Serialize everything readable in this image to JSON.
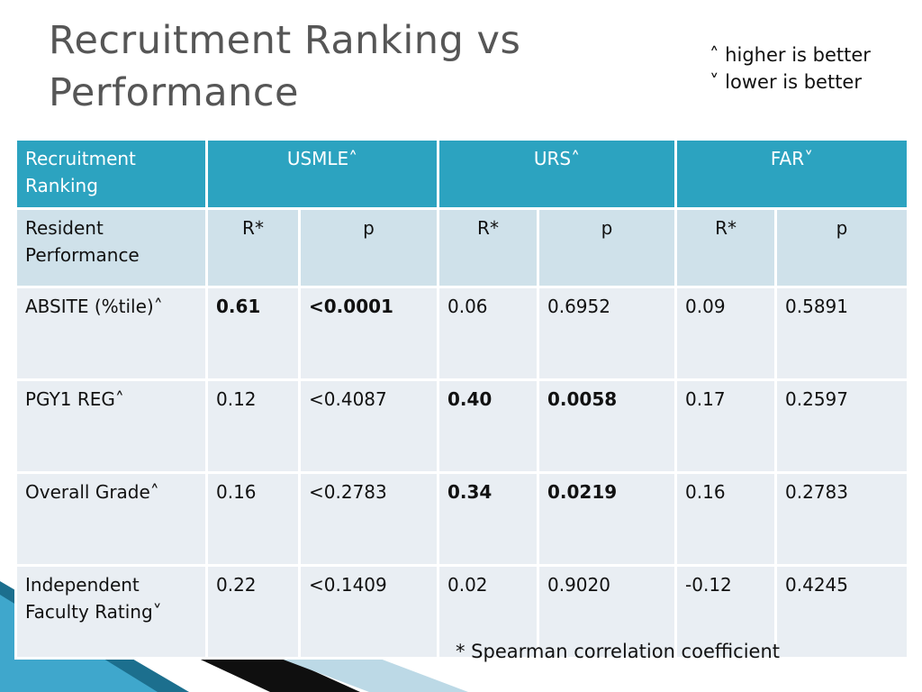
{
  "title": "Recruitment Ranking vs Performance",
  "legend": [
    "˄ higher is better",
    "˅ lower is better"
  ],
  "header": {
    "corner": "Recruitment Ranking",
    "groups": [
      "USMLE˄",
      "URS˄",
      "FAR˅"
    ]
  },
  "subheader": {
    "corner": "Resident Performance",
    "cols": [
      "R*",
      "p",
      "R*",
      "p",
      "R*",
      "p"
    ]
  },
  "rows": [
    {
      "label": "ABSITE (%tile)˄",
      "cells": [
        "0.61",
        "<0.0001",
        "0.06",
        "0.6952",
        "0.09",
        "0.5891"
      ]
    },
    {
      "label": "PGY1  REG˄",
      "cells": [
        "0.12",
        "<0.4087",
        "0.40",
        "0.0058",
        "0.17",
        "0.2597"
      ]
    },
    {
      "label": "Overall  Grade˄",
      "cells": [
        "0.16",
        "<0.2783",
        "0.34",
        "0.0219",
        "0.16",
        "0.2783"
      ]
    },
    {
      "label": "Independent Faculty Rating˅",
      "cells": [
        "0.22",
        "<0.1409",
        "0.02",
        "0.9020",
        "-0.12",
        "0.4245"
      ]
    }
  ],
  "footnote": "* Spearman correlation coefficient",
  "colors": {
    "header_bg": "#2ca3c0",
    "subheader_bg": "#cfe1ea",
    "body_bg": "#e9eef3",
    "accent_dark": "#0b4f6c"
  }
}
